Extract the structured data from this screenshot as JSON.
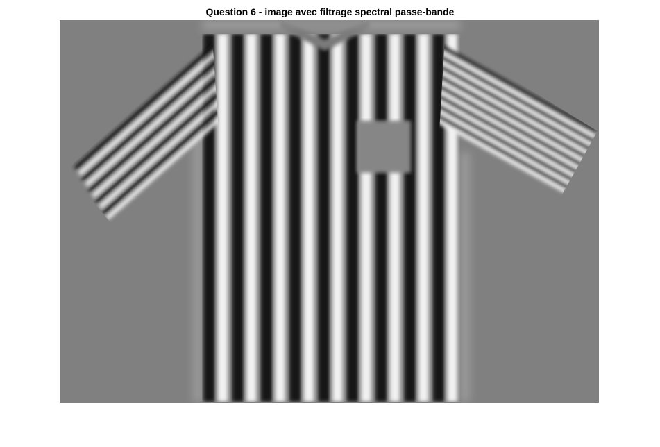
{
  "figure": {
    "title": "Question 6 - image avec filtrage spectral passe-bande"
  },
  "image": {
    "subject": "shirt-icon",
    "background_color": "#808080",
    "stripe_dark_color": "#141414",
    "stripe_light_color": "#f2f2f2",
    "body_stripe_pairs": 9,
    "left_sleeve_stripe_pairs": 5,
    "right_sleeve_stripe_pairs": 8
  }
}
